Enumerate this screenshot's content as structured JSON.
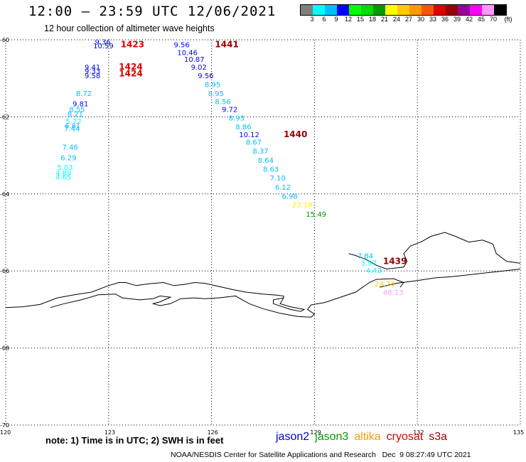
{
  "header": {
    "title": "12:00 – 23:59 UTC 12/06/2021",
    "subtitle": "12 hour collection of altimeter wave heights"
  },
  "colorbar": {
    "colors": [
      "#7f7f7f",
      "#00ffff",
      "#00bfff",
      "#0000ff",
      "#00ff00",
      "#00dd00",
      "#009900",
      "#ffff00",
      "#ffcc00",
      "#ff9900",
      "#ff5500",
      "#dd0000",
      "#990000",
      "#990099",
      "#ff00ff",
      "#ff99ff",
      "#000000"
    ],
    "ticks": [
      "3",
      "6",
      "9",
      "12",
      "15",
      "18",
      "21",
      "24",
      "27",
      "30",
      "33",
      "36",
      "39",
      "42",
      "45",
      "70",
      "(ft)"
    ]
  },
  "map": {
    "lon_range": [
      120,
      135
    ],
    "lat_range": [
      -70,
      -60
    ],
    "lon_ticks": [
      "120",
      "123",
      "126",
      "129",
      "132",
      "135"
    ],
    "lat_ticks": [
      "-60",
      "-62",
      "-64",
      "-66",
      "-68",
      "-70"
    ],
    "coast_segments": [
      {
        "name": "main_coast",
        "points": [
          [
            120,
            -66.95
          ],
          [
            120.5,
            -66.93
          ],
          [
            121,
            -66.87
          ],
          [
            121.5,
            -66.7
          ],
          [
            122,
            -66.62
          ],
          [
            122.5,
            -66.55
          ],
          [
            123,
            -66.38
          ],
          [
            123.3,
            -66.3
          ],
          [
            123.5,
            -66.3
          ],
          [
            123.8,
            -66.38
          ],
          [
            124.2,
            -66.33
          ],
          [
            124.6,
            -66.3
          ],
          [
            124.9,
            -66.38
          ],
          [
            125.2,
            -66.35
          ],
          [
            125.5,
            -66.3
          ],
          [
            125.8,
            -66.32
          ],
          [
            126.2,
            -66.4
          ],
          [
            126.6,
            -66.48
          ],
          [
            127,
            -66.55
          ],
          [
            127.5,
            -66.6
          ],
          [
            127.9,
            -66.63
          ],
          [
            128.1,
            -66.65
          ],
          [
            128.1,
            -66.7
          ],
          [
            127.8,
            -66.75
          ],
          [
            127.8,
            -66.85
          ],
          [
            128.3,
            -67.0
          ],
          [
            128.6,
            -67.05
          ],
          [
            128.7,
            -67.0
          ],
          [
            128.3,
            -66.93
          ],
          [
            128.0,
            -66.85
          ],
          [
            128.1,
            -66.7
          ]
        ]
      },
      {
        "name": "shelf_loop",
        "points": [
          [
            121.3,
            -66.95
          ],
          [
            121.7,
            -66.85
          ],
          [
            122.2,
            -66.75
          ],
          [
            122.7,
            -66.62
          ],
          [
            123.2,
            -66.6
          ],
          [
            123.4,
            -66.7
          ],
          [
            123.9,
            -66.75
          ],
          [
            124.3,
            -66.72
          ],
          [
            124.5,
            -66.65
          ],
          [
            124.8,
            -66.68
          ],
          [
            124.5,
            -66.8
          ],
          [
            124.3,
            -66.85
          ],
          [
            124.5,
            -66.9
          ],
          [
            124.8,
            -66.85
          ],
          [
            125.1,
            -66.72
          ],
          [
            125.5,
            -66.7
          ],
          [
            125.8,
            -66.72
          ],
          [
            126.2,
            -66.7
          ],
          [
            126.7,
            -66.65
          ],
          [
            126.9,
            -66.75
          ],
          [
            127.1,
            -66.85
          ],
          [
            127.5,
            -66.98
          ],
          [
            128,
            -67.1
          ],
          [
            128.5,
            -67.18
          ],
          [
            128.9,
            -67.2
          ],
          [
            129,
            -67.12
          ],
          [
            128.8,
            -67.0
          ],
          [
            128.9,
            -66.88
          ],
          [
            129.3,
            -66.82
          ],
          [
            129.7,
            -66.7
          ],
          [
            130.2,
            -66.55
          ],
          [
            130.6,
            -66.3
          ],
          [
            130.8,
            -66.22
          ],
          [
            131.3,
            -66.2
          ],
          [
            131.6,
            -66.3
          ],
          [
            131.5,
            -66.42
          ]
        ]
      },
      {
        "name": "east_coast",
        "points": [
          [
            130.9,
            -66.42
          ],
          [
            131.4,
            -66.32
          ],
          [
            132,
            -66.25
          ],
          [
            132.5,
            -66.18
          ],
          [
            133,
            -66.15
          ],
          [
            133.5,
            -66.1
          ],
          [
            134,
            -66.05
          ],
          [
            134.5,
            -66.0
          ],
          [
            135,
            -65.95
          ]
        ]
      },
      {
        "name": "east_bay",
        "points": [
          [
            135,
            -65.8
          ],
          [
            134.6,
            -65.75
          ],
          [
            134.3,
            -65.55
          ],
          [
            134.2,
            -65.3
          ],
          [
            133.9,
            -65.2
          ],
          [
            133.5,
            -65.25
          ],
          [
            133.1,
            -65.1
          ],
          [
            132.8,
            -65.0
          ],
          [
            132.4,
            -65.1
          ],
          [
            132.1,
            -65.25
          ],
          [
            131.8,
            -65.35
          ],
          [
            131.6,
            -65.55
          ],
          [
            131.7,
            -65.75
          ],
          [
            131.6,
            -65.9
          ],
          [
            131.1,
            -65.95
          ],
          [
            130.8,
            -65.85
          ],
          [
            130.5,
            -65.7
          ],
          [
            130.2,
            -65.6
          ],
          [
            130,
            -65.55
          ]
        ]
      }
    ],
    "orbit_labels": [
      {
        "text": "1423",
        "lon": 123.35,
        "lat": -60.12,
        "color": "#dd0000"
      },
      {
        "text": "1424",
        "lon": 123.3,
        "lat": -60.7,
        "color": "#dd0000"
      },
      {
        "text": "1424",
        "lon": 123.3,
        "lat": -60.88,
        "color": "#dd0000"
      },
      {
        "text": "1441",
        "lon": 126.1,
        "lat": -60.12,
        "color": "#990000"
      },
      {
        "text": "1440",
        "lon": 128.1,
        "lat": -62.45,
        "color": "#990000"
      },
      {
        "text": "1439",
        "lon": 131.0,
        "lat": -65.75,
        "color": "#990000"
      }
    ],
    "swh_labels": [
      {
        "text": "9.36",
        "lon": 122.6,
        "lat": -60.05,
        "color": "#0000ff"
      },
      {
        "text": "10.59",
        "lon": 122.55,
        "lat": -60.15,
        "color": "#0000ff"
      },
      {
        "text": "9.41",
        "lon": 122.3,
        "lat": -60.7,
        "color": "#0000ff"
      },
      {
        "text": "9.33",
        "lon": 122.3,
        "lat": -60.8,
        "color": "#0000ff"
      },
      {
        "text": "9.58",
        "lon": 122.3,
        "lat": -60.92,
        "color": "#0000ff"
      },
      {
        "text": "8.72",
        "lon": 122.05,
        "lat": -61.38,
        "color": "#00bfff"
      },
      {
        "text": "9.81",
        "lon": 121.95,
        "lat": -61.65,
        "color": "#0000ff"
      },
      {
        "text": "8.55",
        "lon": 121.85,
        "lat": -61.8,
        "color": "#00bfff"
      },
      {
        "text": "8.21",
        "lon": 121.8,
        "lat": -61.92,
        "color": "#00bfff"
      },
      {
        "text": "5.72",
        "lon": 121.75,
        "lat": -62.1,
        "color": "#00ffff"
      },
      {
        "text": "6.81",
        "lon": 121.72,
        "lat": -62.22,
        "color": "#00bfff"
      },
      {
        "text": "7.44",
        "lon": 121.7,
        "lat": -62.3,
        "color": "#00bfff"
      },
      {
        "text": "7.46",
        "lon": 121.65,
        "lat": -62.78,
        "color": "#00bfff"
      },
      {
        "text": "6.29",
        "lon": 121.6,
        "lat": -63.05,
        "color": "#00bfff"
      },
      {
        "text": "5.03",
        "lon": 121.5,
        "lat": -63.3,
        "color": "#00ffff"
      },
      {
        "text": "4.89",
        "lon": 121.45,
        "lat": -63.45,
        "color": "#00ffff"
      },
      {
        "text": "4.65",
        "lon": 121.45,
        "lat": -63.55,
        "color": "#00ffff"
      },
      {
        "text": "9.56",
        "lon": 124.9,
        "lat": -60.12,
        "color": "#0000ff"
      },
      {
        "text": "10.46",
        "lon": 125.0,
        "lat": -60.32,
        "color": "#0000ff"
      },
      {
        "text": "10.87",
        "lon": 125.2,
        "lat": -60.5,
        "color": "#0000ff"
      },
      {
        "text": "9.02",
        "lon": 125.4,
        "lat": -60.7,
        "color": "#0000ff"
      },
      {
        "text": "9.56",
        "lon": 125.6,
        "lat": -60.92,
        "color": "#0000ff"
      },
      {
        "text": "8.95",
        "lon": 125.8,
        "lat": -61.15,
        "color": "#00bfff"
      },
      {
        "text": "8.95",
        "lon": 125.9,
        "lat": -61.38,
        "color": "#00bfff"
      },
      {
        "text": "8.56",
        "lon": 126.1,
        "lat": -61.6,
        "color": "#00bfff"
      },
      {
        "text": "9.72",
        "lon": 126.3,
        "lat": -61.8,
        "color": "#0000ff"
      },
      {
        "text": "8.93",
        "lon": 126.5,
        "lat": -62.02,
        "color": "#00bfff"
      },
      {
        "text": "8.86",
        "lon": 126.7,
        "lat": -62.25,
        "color": "#00bfff"
      },
      {
        "text": "10.12",
        "lon": 126.8,
        "lat": -62.45,
        "color": "#0000ff"
      },
      {
        "text": "8.67",
        "lon": 127.0,
        "lat": -62.65,
        "color": "#00bfff"
      },
      {
        "text": "8.37",
        "lon": 127.2,
        "lat": -62.88,
        "color": "#00bfff"
      },
      {
        "text": "8.64",
        "lon": 127.35,
        "lat": -63.12,
        "color": "#00bfff"
      },
      {
        "text": "8.63",
        "lon": 127.5,
        "lat": -63.35,
        "color": "#00bfff"
      },
      {
        "text": "7.10",
        "lon": 127.7,
        "lat": -63.58,
        "color": "#00bfff"
      },
      {
        "text": "6.12",
        "lon": 127.85,
        "lat": -63.82,
        "color": "#00bfff"
      },
      {
        "text": "6.98",
        "lon": 128.05,
        "lat": -64.05,
        "color": "#00bfff"
      },
      {
        "text": "23.18",
        "lon": 128.35,
        "lat": -64.27,
        "color": "#ffee00"
      },
      {
        "text": "15.49",
        "lon": 128.75,
        "lat": -64.52,
        "color": "#009900"
      },
      {
        "text": "7.84",
        "lon": 130.25,
        "lat": -65.6,
        "color": "#00bfff"
      },
      {
        "text": "3.97",
        "lon": 130.35,
        "lat": -65.78,
        "color": "#00ffff"
      },
      {
        "text": "4.43",
        "lon": 130.5,
        "lat": -65.98,
        "color": "#00ffff"
      },
      {
        "text": "24.74",
        "lon": 130.75,
        "lat": -66.33,
        "color": "#ffcc00"
      },
      {
        "text": "48.13",
        "lon": 131.0,
        "lat": -66.55,
        "color": "#ff99ff"
      }
    ]
  },
  "note": "note: 1) Time is in UTC; 2) SWH is in feet",
  "legend": [
    {
      "text": "jason2",
      "color": "#0000cc"
    },
    {
      "text": "jason3",
      "color": "#009900"
    },
    {
      "text": "altika",
      "color": "#ff9900"
    },
    {
      "text": "cryosat",
      "color": "#dd0000"
    },
    {
      "text": "s3a",
      "color": "#990000"
    }
  ],
  "footer": "NOAA/NESDIS Center for Satellite Applications and Research   Dec  9 08:27:49 UTC 2021"
}
